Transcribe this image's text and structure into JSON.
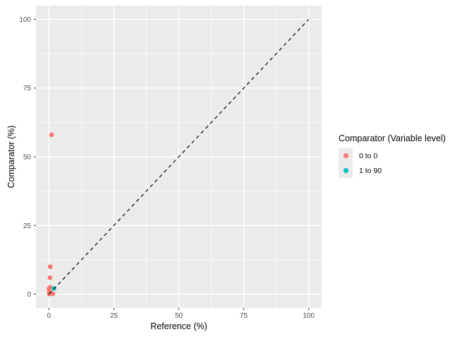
{
  "chart_data": {
    "type": "scatter",
    "title": "",
    "xlabel": "Reference (%)",
    "ylabel": "Comparator (%)",
    "xlim": [
      0,
      100
    ],
    "ylim": [
      0,
      100
    ],
    "x_ticks": [
      0,
      25,
      50,
      75,
      100
    ],
    "y_ticks": [
      0,
      25,
      50,
      75,
      100
    ],
    "x_minor_ticks": [
      12.5,
      37.5,
      62.5,
      87.5
    ],
    "y_minor_ticks": [
      12.5,
      37.5,
      62.5,
      87.5
    ],
    "axis_expansion_pct": 5,
    "grid": true,
    "legend_position": "right",
    "panel_background": "#EBEBEB",
    "grid_major_color": "#FFFFFF",
    "grid_minor_color": "#FFFFFF",
    "tick_color": "#333333",
    "tick_label_color": "#4D4D4D",
    "point_radius_px": 3.3,
    "series": [
      {
        "name": "0 to 0",
        "color": "#F8766D",
        "points": [
          [
            1,
            58
          ],
          [
            0.5,
            10
          ],
          [
            0.4,
            6
          ],
          [
            0.4,
            2.5
          ],
          [
            0,
            2
          ],
          [
            0.2,
            1
          ],
          [
            0.6,
            0.5
          ],
          [
            1.5,
            0.2
          ],
          [
            0.1,
            0.1
          ]
        ]
      },
      {
        "name": "1 to 90",
        "color": "#00BFC4",
        "points": [
          [
            1.9,
            2.1
          ]
        ]
      }
    ],
    "reference_line": {
      "from": [
        0,
        0
      ],
      "to": [
        100,
        100
      ],
      "style": "dashed",
      "color": "#000000"
    }
  },
  "legend": {
    "title": "Comparator (Variable level)",
    "items": [
      {
        "label": "0 to 0",
        "color": "#F8766D"
      },
      {
        "label": "1 to 90",
        "color": "#00BFC4"
      }
    ]
  }
}
